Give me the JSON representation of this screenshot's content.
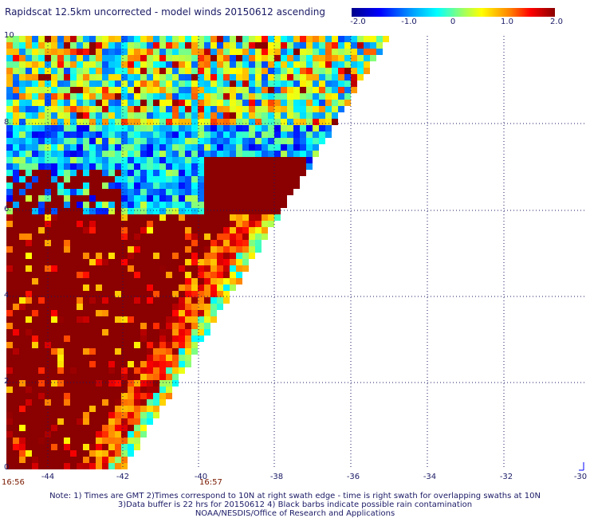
{
  "title": "Rapidscat 12.5km uncorrected - model winds 20150612 ascending",
  "colorbar": {
    "labels": [
      "-2.0",
      "-1.0",
      "0",
      "1.0",
      "2.0"
    ],
    "min": -2.0,
    "max": 2.0,
    "colors": [
      "#00008b",
      "#0000ff",
      "#00c8ff",
      "#00ffe0",
      "#fff000",
      "#ff8000",
      "#ff0000",
      "#8b0000"
    ]
  },
  "axes": {
    "x_ticks": [
      "-44",
      "-42",
      "-40",
      "-38",
      "-36",
      "-34",
      "-32",
      "-30"
    ],
    "y_ticks": [
      "0",
      "2",
      "4",
      "6",
      "8",
      "10"
    ],
    "lon_range": [
      -44.8,
      -30
    ],
    "lat_range": [
      0,
      10
    ],
    "grid": "dotted"
  },
  "times": {
    "left": "16:56",
    "mid": "16:57"
  },
  "notes": {
    "line1": "Note: 1) Times are GMT 2)Times correspond to 10N at right swath edge - time is right swath for overlapping swaths at 10N",
    "line2": "3)Data buffer is 22 hrs for 20150612 4) Black barbs indicate possible rain contamination",
    "line3": "NOAA/NESDIS/Office of Research and Applications"
  }
}
